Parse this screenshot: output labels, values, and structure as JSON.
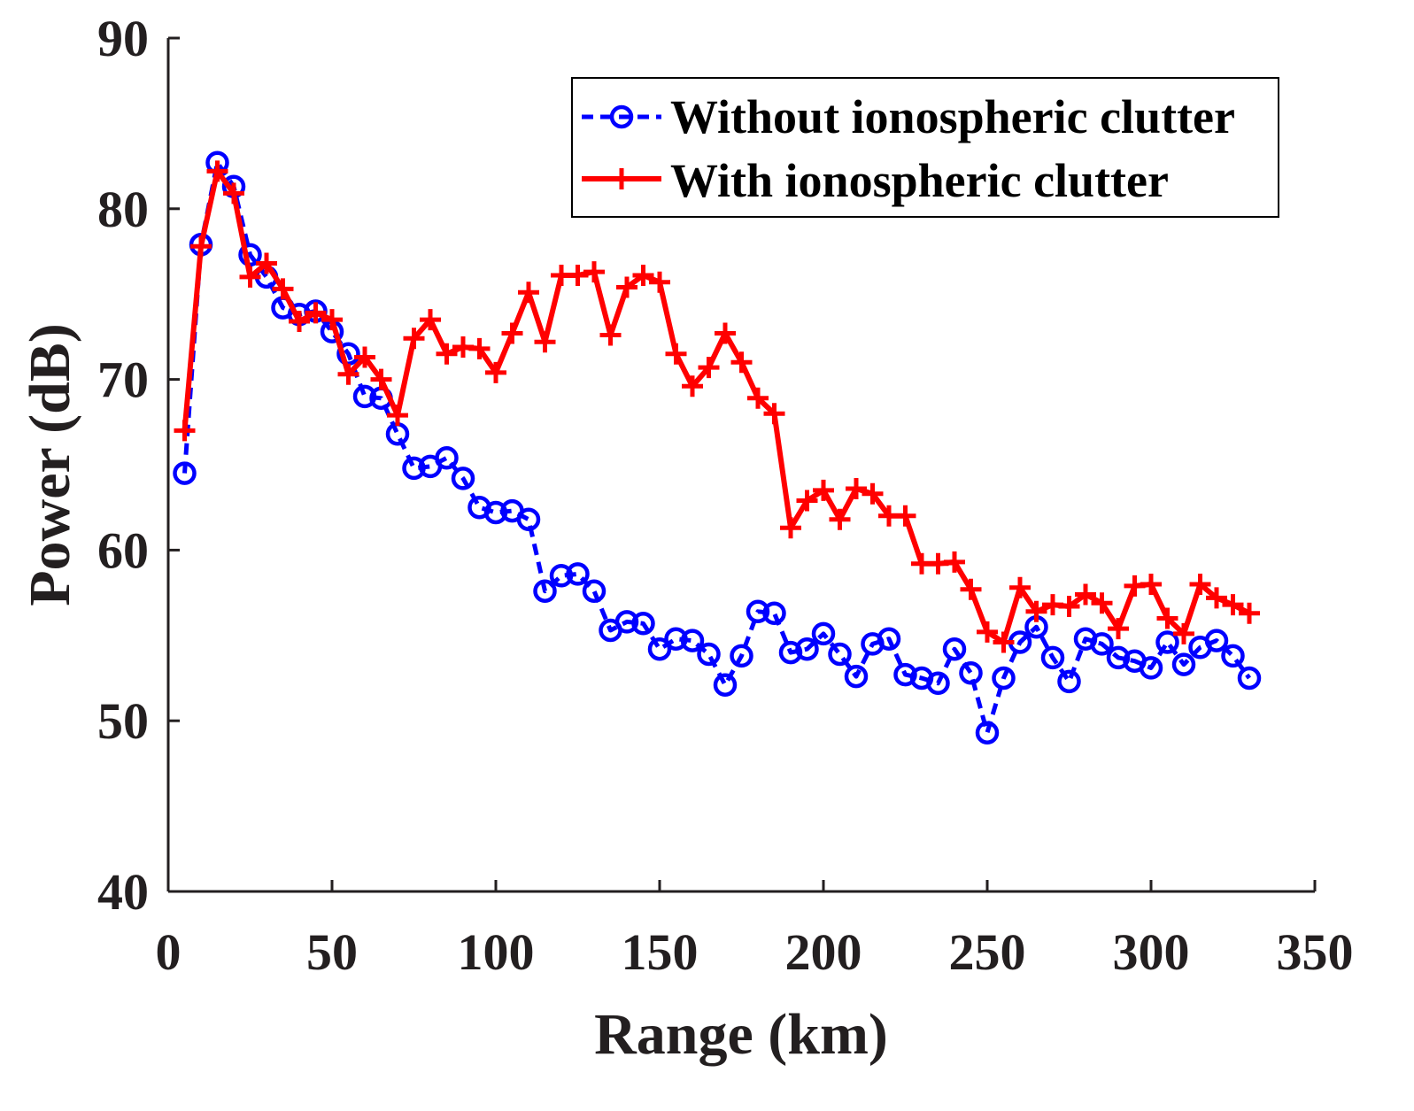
{
  "chart_data": {
    "type": "line",
    "title": "",
    "xlabel": "Range (km)",
    "ylabel": "Power (dB)",
    "xlim": [
      0,
      350
    ],
    "ylim": [
      40,
      90
    ],
    "xticks": [
      "0",
      "50",
      "100",
      "150",
      "200",
      "250",
      "300",
      "350"
    ],
    "yticks": [
      "40",
      "50",
      "60",
      "70",
      "80",
      "90"
    ],
    "grid": false,
    "legend_position": "top-right",
    "x": [
      5,
      10,
      15,
      20,
      25,
      30,
      35,
      40,
      45,
      50,
      55,
      60,
      65,
      70,
      75,
      80,
      85,
      90,
      95,
      100,
      105,
      110,
      115,
      120,
      125,
      130,
      135,
      140,
      145,
      150,
      155,
      160,
      165,
      170,
      175,
      180,
      185,
      190,
      195,
      200,
      205,
      210,
      215,
      220,
      225,
      230,
      235,
      240,
      245,
      250,
      255,
      260,
      265,
      270,
      275,
      280,
      285,
      290,
      295,
      300,
      305,
      310,
      315,
      320,
      325,
      330
    ],
    "series": [
      {
        "name": "Without ionospheric clutter",
        "color": "#0000ff",
        "line_style": "dashed",
        "marker": "circle",
        "values": [
          64.5,
          77.9,
          82.7,
          81.3,
          77.3,
          76.0,
          74.2,
          73.8,
          74.0,
          72.8,
          71.5,
          69.0,
          68.9,
          66.8,
          64.8,
          64.9,
          65.4,
          64.2,
          62.5,
          62.2,
          62.3,
          61.8,
          57.6,
          58.5,
          58.6,
          57.6,
          55.3,
          55.8,
          55.7,
          54.2,
          54.8,
          54.7,
          53.9,
          52.1,
          53.8,
          56.4,
          56.3,
          54.0,
          54.2,
          55.1,
          53.9,
          52.6,
          54.5,
          54.8,
          52.7,
          52.5,
          52.2,
          54.2,
          52.8,
          49.3,
          52.5,
          54.6,
          55.5,
          53.7,
          52.3,
          54.8,
          54.5,
          53.7,
          53.5,
          53.1,
          54.6,
          53.3,
          54.3,
          54.7,
          53.8,
          52.5
        ]
      },
      {
        "name": "With ionospheric clutter",
        "color": "#ff0000",
        "line_style": "solid",
        "marker": "plus",
        "values": [
          67.0,
          77.8,
          82.2,
          80.9,
          76.0,
          76.8,
          75.3,
          73.4,
          73.9,
          73.5,
          70.3,
          71.3,
          70.0,
          67.9,
          72.4,
          73.5,
          71.5,
          71.9,
          71.8,
          70.4,
          72.7,
          75.1,
          72.2,
          76.1,
          76.1,
          76.3,
          72.6,
          75.4,
          76.1,
          75.7,
          71.5,
          69.6,
          70.7,
          72.7,
          71.0,
          68.9,
          68.0,
          61.3,
          62.9,
          63.5,
          61.8,
          63.6,
          63.3,
          62.0,
          62.0,
          59.2,
          59.2,
          59.3,
          57.7,
          55.2,
          54.6,
          57.8,
          56.4,
          56.8,
          56.7,
          57.4,
          56.9,
          55.4,
          57.9,
          58.0,
          56.0,
          55.1,
          58.0,
          57.2,
          56.8,
          56.3
        ]
      }
    ]
  }
}
